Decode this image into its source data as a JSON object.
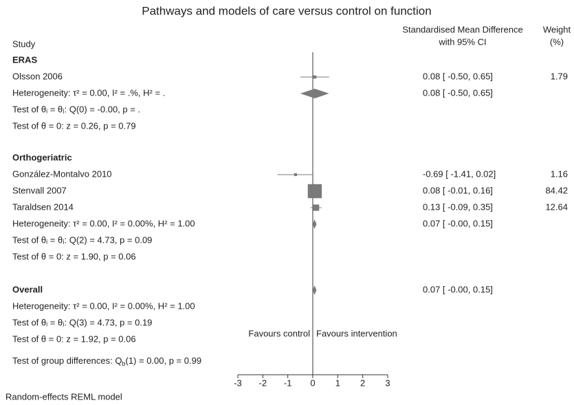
{
  "chart_data": {
    "type": "forest",
    "title": "Pathways and models of care versus control on function",
    "column_headers": {
      "study": "Study",
      "effect": [
        "Standardised Mean Difference",
        "with 95% CI"
      ],
      "weight": [
        "Weight",
        "(%)"
      ]
    },
    "groups": [
      {
        "name": "ERAS",
        "studies": [
          {
            "name": "Olsson 2006",
            "estimate": 0.08,
            "lower": -0.5,
            "upper": 0.65,
            "value_label": "0.08 [ -0.50, 0.65]",
            "weight": 1.79
          }
        ],
        "heterogeneity": "Heterogeneity: τ² = 0.00, I² = .%, H² = .",
        "estimate": 0.08,
        "lower": -0.5,
        "upper": 0.65,
        "value_label": "0.08 [ -0.50, 0.65]",
        "tests": [
          "Test of θᵢ = θⱼ: Q(0) = -0.00, p = .",
          "Test of θ = 0: z = 0.26, p = 0.79"
        ]
      },
      {
        "name": "Orthogeriatric",
        "studies": [
          {
            "name": "González-Montalvo 2010",
            "estimate": -0.69,
            "lower": -1.41,
            "upper": 0.02,
            "value_label": "-0.69 [ -1.41, 0.02]",
            "weight": 1.16
          },
          {
            "name": "Stenvall 2007",
            "estimate": 0.08,
            "lower": -0.01,
            "upper": 0.16,
            "value_label": "0.08 [ -0.01, 0.16]",
            "weight": 84.42
          },
          {
            "name": "Taraldsen 2014",
            "estimate": 0.13,
            "lower": -0.09,
            "upper": 0.35,
            "value_label": "0.13 [ -0.09, 0.35]",
            "weight": 12.64
          }
        ],
        "heterogeneity": "Heterogeneity: τ² = 0.00, I² = 0.00%, H² = 1.00",
        "estimate": 0.07,
        "lower": -0.0,
        "upper": 0.15,
        "value_label": "0.07 [ -0.00, 0.15]",
        "tests": [
          "Test of θᵢ = θⱼ: Q(2) = 4.73, p = 0.09",
          "Test of θ = 0: z = 1.90, p = 0.06"
        ]
      }
    ],
    "overall": {
      "name": "Overall",
      "estimate": 0.07,
      "lower": -0.0,
      "upper": 0.15,
      "value_label": "0.07 [ -0.00, 0.15]",
      "heterogeneity": "Heterogeneity: τ² = 0.00, I² = 0.00%, H² = 1.00",
      "tests": [
        "Test of θᵢ = θⱼ: Q(3) = 4.73, p = 0.19",
        "Test of θ = 0: z = 1.92, p = 0.06"
      ]
    },
    "group_test": [
      "Test of group differences: Q",
      "b",
      "(1) = 0.00, p = 0.99"
    ],
    "favours": [
      "Favours control",
      "Favours intervention"
    ],
    "xlim": [
      -3,
      3
    ],
    "xticks": [
      -3,
      -2,
      -1,
      0,
      1,
      2,
      3
    ],
    "note": "Random-effects REML model",
    "color": "#7a7a7a"
  }
}
